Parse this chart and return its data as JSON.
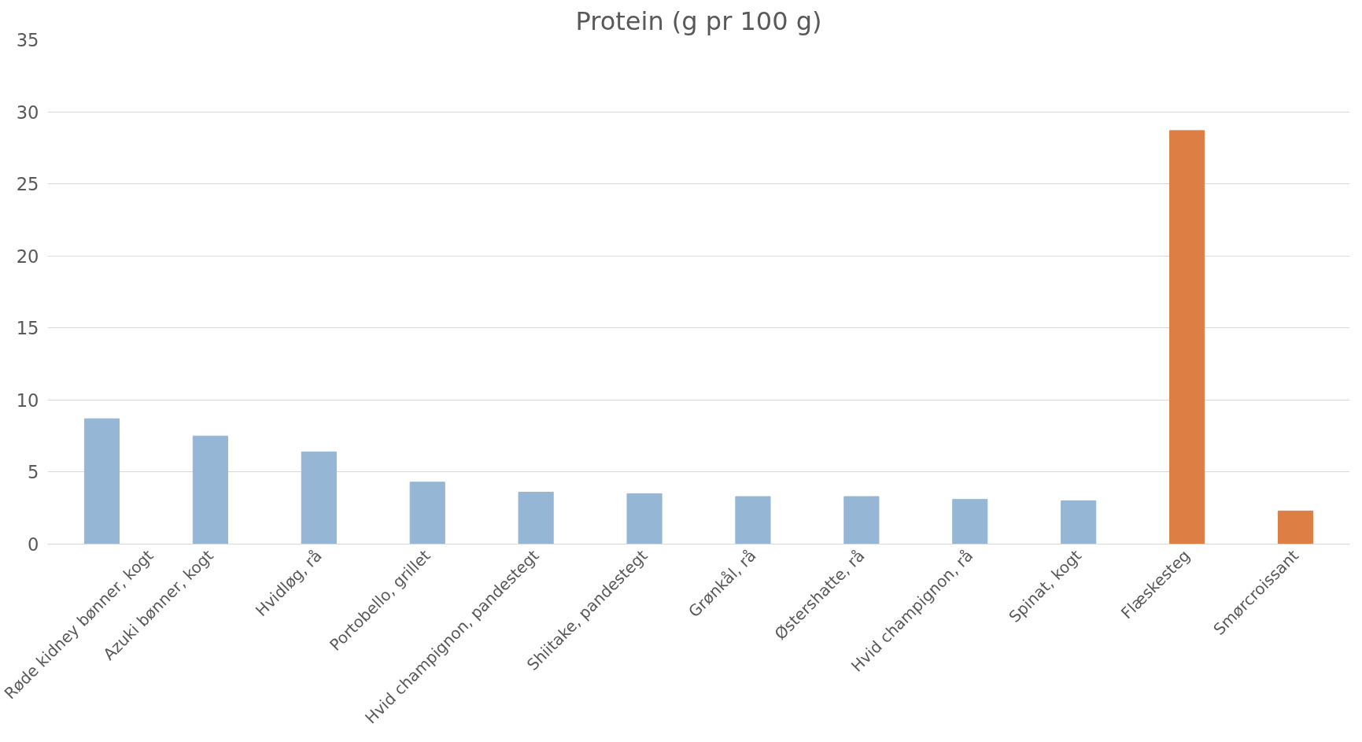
{
  "chart_data": {
    "type": "bar",
    "title": "Protein (g pr 100 g)",
    "categories": [
      "Røde kidney bønner, kogt",
      "Azuki bønner, kogt",
      "Hvidløg, rå",
      "Portobello, grillet",
      "Hvid champignon, pandestegt",
      "Shiitake, pandestegt",
      "Grønkål, rå",
      "Østershatte, rå",
      "Hvid champignon, rå",
      "Spinat, kogt",
      "Flæskesteg",
      "Smørcroissant"
    ],
    "values": [
      8.7,
      7.5,
      6.4,
      4.3,
      3.6,
      3.5,
      3.3,
      3.3,
      3.1,
      3.0,
      28.7,
      2.3
    ],
    "colors": [
      "#95b6d4",
      "#95b6d4",
      "#95b6d4",
      "#95b6d4",
      "#95b6d4",
      "#95b6d4",
      "#95b6d4",
      "#95b6d4",
      "#95b6d4",
      "#95b6d4",
      "#dd7f45",
      "#dd7f45"
    ],
    "ylim": [
      0,
      35
    ],
    "yticks": [
      0,
      5,
      10,
      15,
      20,
      25,
      30,
      35
    ],
    "grid": "y"
  }
}
